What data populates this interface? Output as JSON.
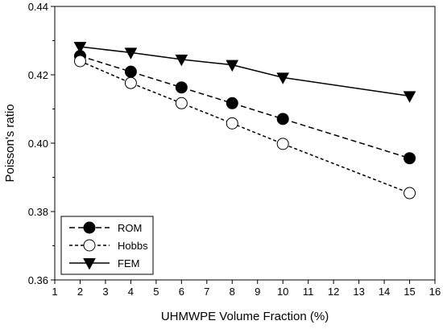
{
  "chart_data": {
    "type": "line",
    "xlabel": "UHMWPE Volume Fraction (%)",
    "ylabel": "Poisson's ratio",
    "xlim": [
      1,
      16
    ],
    "ylim": [
      0.36,
      0.44
    ],
    "xticks": [
      "1",
      "2",
      "3",
      "4",
      "5",
      "6",
      "7",
      "8",
      "9",
      "10",
      "11",
      "12",
      "13",
      "14",
      "15",
      "16"
    ],
    "yticks": [
      "0.36",
      "0.38",
      "0.40",
      "0.42",
      "0.44"
    ],
    "legend_position": "bottom-left",
    "grid": false,
    "x": [
      2,
      4,
      6,
      8,
      10,
      15
    ],
    "series": [
      {
        "name": "ROM",
        "marker": "filled-circle",
        "line": "dashed",
        "values": [
          0.4255,
          0.4209,
          0.4163,
          0.4117,
          0.4071,
          0.3956
        ]
      },
      {
        "name": "Hobbs",
        "marker": "open-circle",
        "line": "dotted",
        "values": [
          0.424,
          0.4176,
          0.4117,
          0.4058,
          0.3998,
          0.3854
        ]
      },
      {
        "name": "FEM",
        "marker": "triangle-down",
        "line": "solid",
        "values": [
          0.4282,
          0.4265,
          0.4245,
          0.4229,
          0.4192,
          0.4138
        ]
      }
    ]
  }
}
